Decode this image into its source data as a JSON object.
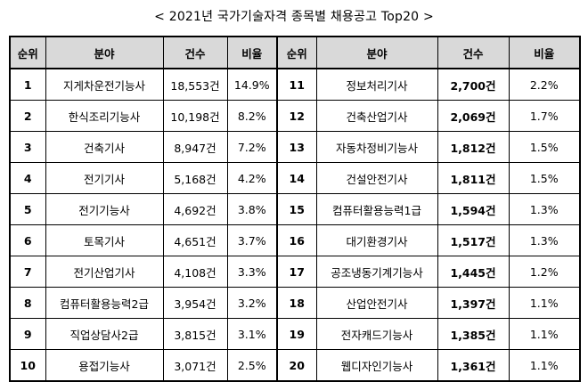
{
  "title": "< 2021년 국가기술자격 종목별 채용공고 Top20 >",
  "headers": {
    "rank": "순위",
    "field": "분야",
    "count": "건수",
    "ratio": "비율"
  },
  "rows": [
    {
      "l": {
        "rank": "1",
        "field": "지게차운전기능사",
        "count": "18,553건",
        "ratio": "14.9%"
      },
      "r": {
        "rank": "11",
        "field": "정보처리기사",
        "count": "2,700건",
        "ratio": "2.2%"
      }
    },
    {
      "l": {
        "rank": "2",
        "field": "한식조리기능사",
        "count": "10,198건",
        "ratio": "8.2%"
      },
      "r": {
        "rank": "12",
        "field": "건축산업기사",
        "count": "2,069건",
        "ratio": "1.7%"
      }
    },
    {
      "l": {
        "rank": "3",
        "field": "건축기사",
        "count": "8,947건",
        "ratio": "7.2%"
      },
      "r": {
        "rank": "13",
        "field": "자동차정비기능사",
        "count": "1,812건",
        "ratio": "1.5%"
      }
    },
    {
      "l": {
        "rank": "4",
        "field": "전기기사",
        "count": "5,168건",
        "ratio": "4.2%"
      },
      "r": {
        "rank": "14",
        "field": "건설안전기사",
        "count": "1,811건",
        "ratio": "1.5%"
      }
    },
    {
      "l": {
        "rank": "5",
        "field": "전기기능사",
        "count": "4,692건",
        "ratio": "3.8%"
      },
      "r": {
        "rank": "15",
        "field": "컴퓨터활용능력1급",
        "count": "1,594건",
        "ratio": "1.3%"
      }
    },
    {
      "l": {
        "rank": "6",
        "field": "토목기사",
        "count": "4,651건",
        "ratio": "3.7%"
      },
      "r": {
        "rank": "16",
        "field": "대기환경기사",
        "count": "1,517건",
        "ratio": "1.3%"
      }
    },
    {
      "l": {
        "rank": "7",
        "field": "전기산업기사",
        "count": "4,108건",
        "ratio": "3.3%"
      },
      "r": {
        "rank": "17",
        "field": "공조냉동기계기능사",
        "count": "1,445건",
        "ratio": "1.2%"
      }
    },
    {
      "l": {
        "rank": "8",
        "field": "컴퓨터활용능력2급",
        "count": "3,954건",
        "ratio": "3.2%"
      },
      "r": {
        "rank": "18",
        "field": "산업안전기사",
        "count": "1,397건",
        "ratio": "1.1%"
      }
    },
    {
      "l": {
        "rank": "9",
        "field": "직업상담사2급",
        "count": "3,815건",
        "ratio": "3.1%"
      },
      "r": {
        "rank": "19",
        "field": "전자캐드기능사",
        "count": "1,385건",
        "ratio": "1.1%"
      }
    },
    {
      "l": {
        "rank": "10",
        "field": "용접기능사",
        "count": "3,071건",
        "ratio": "2.5%"
      },
      "r": {
        "rank": "20",
        "field": "웹디자인기능사",
        "count": "1,361건",
        "ratio": "1.1%"
      }
    }
  ]
}
